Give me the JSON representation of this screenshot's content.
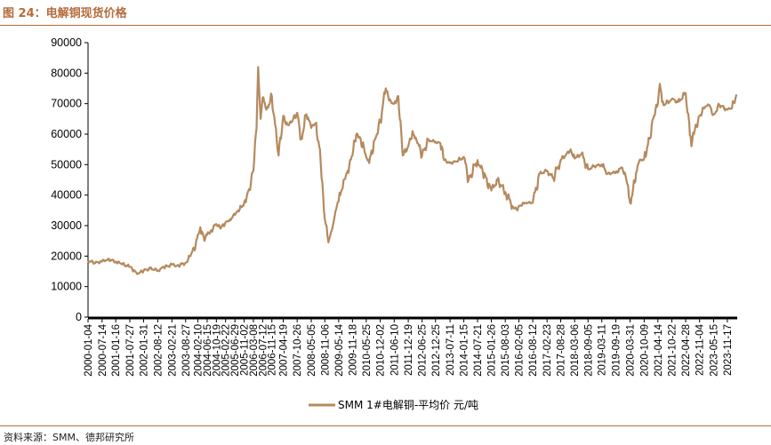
{
  "figure": {
    "title": "图 24：电解铜现货价格",
    "source": "资料来源：SMM、德邦研究所"
  },
  "colors": {
    "accent": "#b36b3a",
    "series": "#b58a5e"
  },
  "chart_data": {
    "type": "line",
    "title": "",
    "xlabel": "",
    "ylabel": "",
    "ylim": [
      0,
      90000
    ],
    "yticks": [
      0,
      10000,
      20000,
      30000,
      40000,
      50000,
      60000,
      70000,
      80000,
      90000
    ],
    "xlim": [
      "2000-01-04",
      "2024-03-31"
    ],
    "xticks": [
      "2000-01-04",
      "2000-07-14",
      "2001-01-16",
      "2001-07-27",
      "2002-01-31",
      "2002-08-12",
      "2003-02-21",
      "2003-08-27",
      "2004-02-10",
      "2004-06-15",
      "2004-10-19",
      "2005-02-22",
      "2005-06-29",
      "2005-11-02",
      "2006-03-08",
      "2006-07-12",
      "2006-11-15",
      "2007-04-19",
      "2007-10-26",
      "2008-05-05",
      "2008-11-06",
      "2009-05-14",
      "2009-11-18",
      "2010-05-25",
      "2010-12-02",
      "2011-06-10",
      "2011-12-19",
      "2012-06-25",
      "2012-12-25",
      "2013-07-11",
      "2014-01-15",
      "2014-07-21",
      "2015-01-26",
      "2015-08-03",
      "2016-02-05",
      "2016-08-12",
      "2017-02-23",
      "2017-08-28",
      "2018-03-06",
      "2018-09-05",
      "2019-03-11",
      "2019-09-19",
      "2020-03-31",
      "2020-10-09",
      "2021-04-14",
      "2021-10-22",
      "2022-04-28",
      "2022-11-04",
      "2023-05-15",
      "2023-11-17"
    ],
    "legend": "bottom-center",
    "grid": false,
    "series": [
      {
        "name": "SMM 1#电解铜-平均价 元/吨",
        "points": [
          [
            "2000-01-04",
            18500
          ],
          [
            "2000-04-01",
            17800
          ],
          [
            "2000-07-14",
            18200
          ],
          [
            "2000-10-01",
            19000
          ],
          [
            "2001-01-16",
            18200
          ],
          [
            "2001-04-01",
            17500
          ],
          [
            "2001-07-27",
            16500
          ],
          [
            "2001-10-01",
            15200
          ],
          [
            "2001-11-15",
            14300
          ],
          [
            "2002-01-31",
            15200
          ],
          [
            "2002-05-01",
            16000
          ],
          [
            "2002-08-12",
            15300
          ],
          [
            "2002-11-01",
            16300
          ],
          [
            "2003-02-21",
            17200
          ],
          [
            "2003-05-01",
            16800
          ],
          [
            "2003-08-27",
            17800
          ],
          [
            "2003-11-01",
            20000
          ],
          [
            "2004-01-10",
            23500
          ],
          [
            "2004-02-10",
            27000
          ],
          [
            "2004-03-15",
            29500
          ],
          [
            "2004-05-10",
            25000
          ],
          [
            "2004-06-15",
            27000
          ],
          [
            "2004-08-01",
            28200
          ],
          [
            "2004-10-19",
            30500
          ],
          [
            "2004-12-15",
            29000
          ],
          [
            "2005-02-22",
            31200
          ],
          [
            "2005-04-20",
            32000
          ],
          [
            "2005-06-29",
            33500
          ],
          [
            "2005-09-01",
            35200
          ],
          [
            "2005-11-02",
            37500
          ],
          [
            "2006-01-10",
            42000
          ],
          [
            "2006-03-08",
            48000
          ],
          [
            "2006-04-20",
            62000
          ],
          [
            "2006-05-12",
            82000
          ],
          [
            "2006-06-15",
            65000
          ],
          [
            "2006-07-12",
            72000
          ],
          [
            "2006-09-01",
            68000
          ],
          [
            "2006-11-15",
            72500
          ],
          [
            "2007-01-20",
            58000
          ],
          [
            "2007-02-15",
            53000
          ],
          [
            "2007-04-19",
            66000
          ],
          [
            "2007-06-15",
            63000
          ],
          [
            "2007-08-15",
            64000
          ],
          [
            "2007-10-26",
            67000
          ],
          [
            "2007-12-20",
            58500
          ],
          [
            "2008-03-01",
            66500
          ],
          [
            "2008-05-05",
            62000
          ],
          [
            "2008-07-01",
            63500
          ],
          [
            "2008-09-01",
            55000
          ],
          [
            "2008-10-15",
            40000
          ],
          [
            "2008-11-06",
            32000
          ],
          [
            "2008-12-25",
            24500
          ],
          [
            "2009-02-01",
            28000
          ],
          [
            "2009-03-20",
            33000
          ],
          [
            "2009-05-14",
            38000
          ],
          [
            "2009-07-20",
            45000
          ],
          [
            "2009-09-15",
            48000
          ],
          [
            "2009-11-18",
            53000
          ],
          [
            "2010-01-10",
            60000
          ],
          [
            "2010-03-01",
            59000
          ],
          [
            "2010-05-25",
            52500
          ],
          [
            "2010-07-05",
            50500
          ],
          [
            "2010-09-15",
            58000
          ],
          [
            "2010-12-02",
            64000
          ],
          [
            "2011-02-15",
            75000
          ],
          [
            "2011-04-01",
            71000
          ],
          [
            "2011-06-10",
            70000
          ],
          [
            "2011-08-05",
            72500
          ],
          [
            "2011-10-05",
            53000
          ],
          [
            "2011-12-19",
            56000
          ],
          [
            "2012-02-15",
            61000
          ],
          [
            "2012-04-10",
            58000
          ],
          [
            "2012-06-25",
            53000
          ],
          [
            "2012-09-15",
            58000
          ],
          [
            "2012-12-25",
            57500
          ],
          [
            "2013-03-01",
            57000
          ],
          [
            "2013-04-20",
            51500
          ],
          [
            "2013-07-11",
            50500
          ],
          [
            "2013-10-01",
            51000
          ],
          [
            "2014-01-15",
            52500
          ],
          [
            "2014-03-20",
            45000
          ],
          [
            "2014-07-21",
            51500
          ],
          [
            "2014-10-01",
            47500
          ],
          [
            "2015-01-26",
            41500
          ],
          [
            "2015-04-20",
            45000
          ],
          [
            "2015-08-03",
            41000
          ],
          [
            "2015-11-20",
            36000
          ],
          [
            "2016-01-15",
            35000
          ],
          [
            "2016-02-05",
            36500
          ],
          [
            "2016-05-10",
            37500
          ],
          [
            "2016-08-12",
            37500
          ],
          [
            "2016-11-15",
            47000
          ],
          [
            "2017-02-23",
            48000
          ],
          [
            "2017-05-20",
            45500
          ],
          [
            "2017-08-28",
            51500
          ],
          [
            "2017-11-15",
            53500
          ],
          [
            "2018-01-10",
            55000
          ],
          [
            "2018-03-06",
            52000
          ],
          [
            "2018-06-08",
            53500
          ],
          [
            "2018-09-05",
            48500
          ],
          [
            "2018-12-01",
            49500
          ],
          [
            "2019-03-11",
            50000
          ],
          [
            "2019-06-01",
            47000
          ],
          [
            "2019-09-19",
            47500
          ],
          [
            "2019-12-15",
            49000
          ],
          [
            "2020-02-01",
            46000
          ],
          [
            "2020-03-25",
            38500
          ],
          [
            "2020-03-31",
            37500
          ],
          [
            "2020-06-01",
            44000
          ],
          [
            "2020-08-01",
            51000
          ],
          [
            "2020-10-09",
            52000
          ],
          [
            "2020-12-20",
            58500
          ],
          [
            "2021-02-20",
            66000
          ],
          [
            "2021-04-14",
            70000
          ],
          [
            "2021-05-11",
            76500
          ],
          [
            "2021-07-01",
            69500
          ],
          [
            "2021-10-22",
            71500
          ],
          [
            "2022-01-15",
            70500
          ],
          [
            "2022-04-28",
            73500
          ],
          [
            "2022-06-15",
            64000
          ],
          [
            "2022-07-15",
            56000
          ],
          [
            "2022-09-01",
            61500
          ],
          [
            "2022-11-04",
            66000
          ],
          [
            "2023-01-20",
            69000
          ],
          [
            "2023-03-10",
            69500
          ],
          [
            "2023-05-15",
            66500
          ],
          [
            "2023-08-01",
            69500
          ],
          [
            "2023-11-17",
            68000
          ],
          [
            "2024-01-20",
            68500
          ],
          [
            "2024-03-20",
            73000
          ]
        ]
      }
    ]
  }
}
